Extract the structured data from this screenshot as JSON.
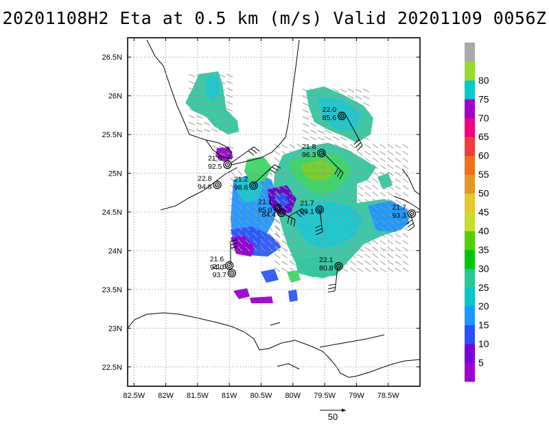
{
  "title": "20201108H2 Eta at 0.5 km (m/s) Valid 20201109  0056Z",
  "axes": {
    "lat_labels": [
      "26.5N",
      "26N",
      "25.5N",
      "25N",
      "24.5N",
      "24N",
      "23.5N",
      "23N",
      "22.5N"
    ],
    "lat_values": [
      26.5,
      26.0,
      25.5,
      25.0,
      24.5,
      24.0,
      23.5,
      23.0,
      22.5
    ],
    "lon_labels": [
      "82.5W",
      "82W",
      "81.5W",
      "81W",
      "80.5W",
      "80W",
      "79.5W",
      "79W",
      "78.5W"
    ],
    "lon_values": [
      -82.5,
      -82.0,
      -81.5,
      -81.0,
      -80.5,
      -80.0,
      -79.5,
      -79.0,
      -78.5
    ],
    "lat_range": [
      22.25,
      26.75
    ],
    "lon_range": [
      -82.6,
      -78.0
    ],
    "grid": "dotted"
  },
  "colorbar": {
    "labels": [
      "5",
      "10",
      "15",
      "20",
      "25",
      "30",
      "35",
      "40",
      "45",
      "50",
      "55",
      "60",
      "65",
      "70",
      "75",
      "80"
    ],
    "colors": [
      "#a000d0",
      "#7c00dc",
      "#2850ff",
      "#1e96ff",
      "#00c8c8",
      "#28c896",
      "#00c800",
      "#50d200",
      "#c8dc28",
      "#e6c828",
      "#e69628",
      "#f06e1e",
      "#f03c3c",
      "#f00082",
      "#a000c8",
      "#00cccc",
      "#96dc28",
      "#aaaaaa"
    ]
  },
  "stations": [
    {
      "lat": 25.74,
      "lon": -79.23,
      "top": "22.0",
      "bottom": "85.6"
    },
    {
      "lat": 25.26,
      "lon": -79.55,
      "top": "21.8",
      "bottom": "96.3"
    },
    {
      "lat": 25.11,
      "lon": -81.03,
      "top": "21.6",
      "bottom": "92.5"
    },
    {
      "lat": 24.85,
      "lon": -81.19,
      "top": "22.8",
      "bottom": "94.8"
    },
    {
      "lat": 24.84,
      "lon": -80.62,
      "top": "21.2",
      "bottom": "98.6"
    },
    {
      "lat": 24.55,
      "lon": -80.24,
      "top": "21.1",
      "bottom": "85.0"
    },
    {
      "lat": 24.49,
      "lon": -80.18,
      "top": "",
      "bottom": "84.4"
    },
    {
      "lat": 24.53,
      "lon": -79.58,
      "top": "21.7",
      "bottom": "93.1"
    },
    {
      "lat": 24.48,
      "lon": -78.13,
      "top": "21.7",
      "bottom": "93.3"
    },
    {
      "lat": 23.81,
      "lon": -81.0,
      "top": "21.6",
      "bottom": "94.0"
    },
    {
      "lat": 23.71,
      "lon": -80.96,
      "top": "21.6",
      "bottom": "93.7"
    },
    {
      "lat": 23.8,
      "lon": -79.28,
      "top": "22.1",
      "bottom": "80.8"
    }
  ],
  "reference_vector": {
    "label": "50"
  }
}
